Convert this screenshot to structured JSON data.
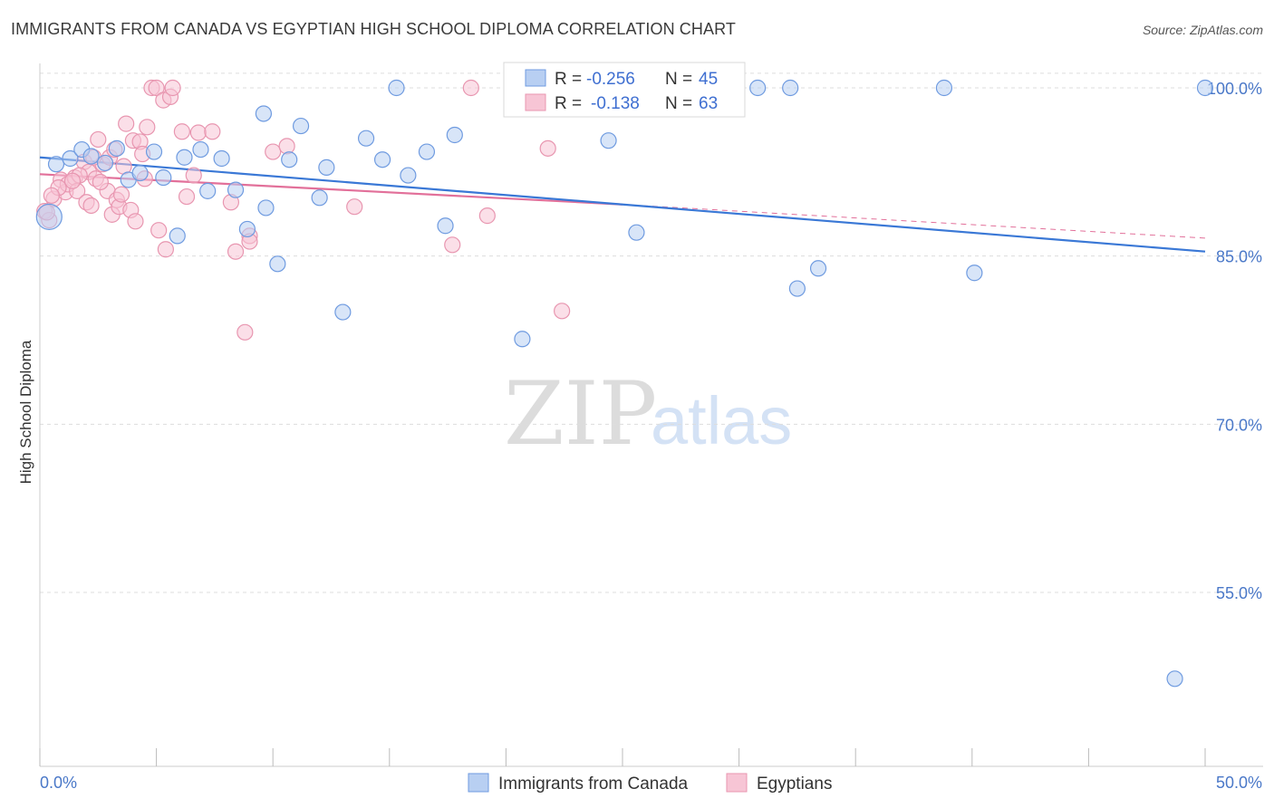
{
  "title": "IMMIGRANTS FROM CANADA VS EGYPTIAN HIGH SCHOOL DIPLOMA CORRELATION CHART",
  "source": "Source: ZipAtlas.com",
  "watermark": {
    "zip": "ZIP",
    "atlas": "atlas"
  },
  "colors": {
    "blue_fill": "#b8cff2",
    "blue_stroke": "#6f9be0",
    "blue_line": "#3a78d6",
    "pink_fill": "#f7c5d5",
    "pink_stroke": "#e896b0",
    "pink_line": "#e2709a",
    "tick_text": "#4a78c8",
    "grid": "#dddddd"
  },
  "legend": {
    "rows": [
      {
        "r_label": "R = ",
        "r_value": "-0.256",
        "n_label": "N = ",
        "n_value": "45"
      },
      {
        "r_label": "R = ",
        "r_value": "-0.138",
        "n_label": "N = ",
        "n_value": "63"
      }
    ]
  },
  "chart_data": {
    "type": "scatter",
    "title": "IMMIGRANTS FROM CANADA VS EGYPTIAN HIGH SCHOOL DIPLOMA CORRELATION CHART",
    "xlabel": "",
    "ylabel": "High School Diploma",
    "xlim": [
      0,
      50
    ],
    "ylim": [
      40,
      101.5
    ],
    "x_tick_labels": [
      "0.0%",
      "50.0%"
    ],
    "y_ticks": [
      55,
      70,
      85,
      100
    ],
    "y_tick_labels": [
      "55.0%",
      "70.0%",
      "85.0%",
      "100.0%"
    ],
    "grid": true,
    "legend_position": "top-center",
    "series": [
      {
        "name": "Immigrants from Canada",
        "color": "#6f9be0",
        "trend": {
          "x": [
            0,
            50
          ],
          "y": [
            93.8,
            85.4
          ],
          "dashed_extension": false
        },
        "points": [
          [
            0.4,
            88.5
          ],
          [
            0.7,
            93.2
          ],
          [
            1.3,
            93.7
          ],
          [
            1.8,
            94.5
          ],
          [
            2.2,
            93.9
          ],
          [
            2.8,
            93.3
          ],
          [
            3.3,
            94.6
          ],
          [
            3.8,
            91.8
          ],
          [
            4.3,
            92.4
          ],
          [
            4.9,
            94.3
          ],
          [
            5.3,
            92.0
          ],
          [
            5.9,
            86.8
          ],
          [
            6.2,
            93.8
          ],
          [
            6.9,
            94.5
          ],
          [
            7.2,
            90.8
          ],
          [
            7.8,
            93.7
          ],
          [
            8.4,
            90.9
          ],
          [
            8.9,
            87.4
          ],
          [
            9.6,
            97.7
          ],
          [
            9.7,
            89.3
          ],
          [
            10.2,
            84.3
          ],
          [
            10.7,
            93.6
          ],
          [
            11.2,
            96.6
          ],
          [
            12.0,
            90.2
          ],
          [
            12.3,
            92.9
          ],
          [
            13.0,
            80.0
          ],
          [
            14.0,
            95.5
          ],
          [
            14.7,
            93.6
          ],
          [
            15.3,
            100.0
          ],
          [
            15.8,
            92.2
          ],
          [
            16.6,
            94.3
          ],
          [
            17.4,
            87.7
          ],
          [
            17.8,
            95.8
          ],
          [
            20.7,
            77.6
          ],
          [
            24.4,
            95.3
          ],
          [
            25.6,
            87.1
          ],
          [
            30.8,
            100.0
          ],
          [
            32.2,
            100.0
          ],
          [
            32.5,
            82.1
          ],
          [
            33.4,
            83.9
          ],
          [
            38.8,
            100.0
          ],
          [
            40.1,
            83.5
          ],
          [
            50.0,
            100.0
          ],
          [
            27.4,
            100.2
          ],
          [
            48.7,
            47.3
          ]
        ]
      },
      {
        "name": "Egyptians",
        "color": "#e896b0",
        "trend": {
          "x": [
            0,
            25
          ],
          "y": [
            92.3,
            89.6
          ],
          "dashed_extension": true,
          "extension_x": [
            25,
            50
          ],
          "extension_y": [
            89.6,
            86.6
          ]
        },
        "points": [
          [
            0.2,
            89.0
          ],
          [
            0.4,
            88.2
          ],
          [
            0.6,
            90.1
          ],
          [
            0.9,
            91.8
          ],
          [
            1.1,
            90.7
          ],
          [
            1.2,
            91.4
          ],
          [
            1.5,
            92.0
          ],
          [
            1.6,
            90.8
          ],
          [
            1.9,
            93.4
          ],
          [
            2.0,
            89.8
          ],
          [
            2.1,
            92.5
          ],
          [
            2.2,
            89.5
          ],
          [
            2.4,
            91.9
          ],
          [
            2.5,
            95.4
          ],
          [
            2.7,
            93.2
          ],
          [
            2.9,
            90.8
          ],
          [
            3.0,
            93.8
          ],
          [
            3.1,
            88.7
          ],
          [
            3.2,
            94.5
          ],
          [
            3.3,
            90.0
          ],
          [
            3.4,
            89.4
          ],
          [
            3.5,
            90.5
          ],
          [
            3.6,
            93.0
          ],
          [
            3.7,
            96.8
          ],
          [
            3.9,
            89.1
          ],
          [
            4.0,
            95.3
          ],
          [
            4.1,
            88.1
          ],
          [
            4.3,
            95.2
          ],
          [
            4.4,
            94.1
          ],
          [
            4.5,
            91.9
          ],
          [
            4.6,
            96.5
          ],
          [
            4.8,
            100.0
          ],
          [
            5.0,
            100.0
          ],
          [
            5.1,
            87.3
          ],
          [
            5.3,
            98.9
          ],
          [
            5.4,
            85.6
          ],
          [
            5.6,
            99.2
          ],
          [
            5.7,
            100.0
          ],
          [
            6.1,
            96.1
          ],
          [
            6.3,
            90.3
          ],
          [
            6.6,
            92.2
          ],
          [
            6.8,
            96.0
          ],
          [
            7.4,
            96.1
          ],
          [
            8.2,
            89.8
          ],
          [
            8.4,
            85.4
          ],
          [
            8.8,
            78.2
          ],
          [
            9.0,
            86.8
          ],
          [
            9.0,
            86.3
          ],
          [
            10.0,
            94.3
          ],
          [
            10.6,
            94.8
          ],
          [
            13.5,
            89.4
          ],
          [
            17.7,
            86.0
          ],
          [
            18.5,
            100.0
          ],
          [
            19.2,
            88.6
          ],
          [
            21.8,
            94.6
          ],
          [
            22.4,
            80.1
          ],
          [
            0.3,
            88.9
          ],
          [
            0.8,
            91.1
          ],
          [
            1.7,
            92.2
          ],
          [
            2.3,
            93.8
          ],
          [
            2.6,
            91.6
          ],
          [
            1.4,
            91.7
          ],
          [
            0.5,
            90.4
          ]
        ]
      }
    ]
  }
}
